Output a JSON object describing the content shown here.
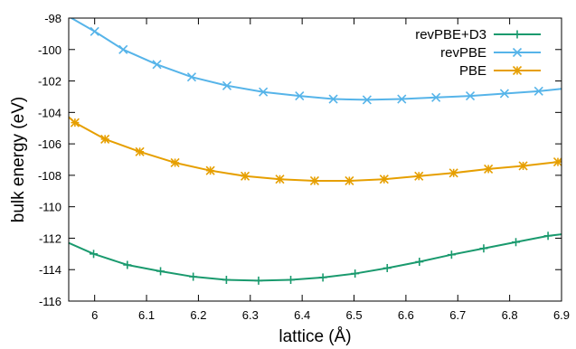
{
  "chart_data": {
    "type": "line",
    "title": "",
    "xlabel": "lattice (Å)",
    "ylabel": "bulk energy (eV)",
    "xlim": [
      5.95,
      6.9
    ],
    "ylim": [
      -116,
      -98
    ],
    "x_ticks": [
      "6",
      "6.1",
      "6.2",
      "6.3",
      "6.4",
      "6.5",
      "6.6",
      "6.7",
      "6.8",
      "6.9"
    ],
    "y_ticks": [
      "-98",
      "-100",
      "-102",
      "-104",
      "-106",
      "-108",
      "-110",
      "-112",
      "-114",
      "-116"
    ],
    "x_tick_values": [
      6.0,
      6.1,
      6.2,
      6.3,
      6.4,
      6.5,
      6.6,
      6.7,
      6.8,
      6.9
    ],
    "y_tick_values": [
      -98,
      -100,
      -102,
      -104,
      -106,
      -108,
      -110,
      -112,
      -114,
      -116
    ],
    "grid": false,
    "legend_position": "top-right",
    "series": [
      {
        "name": "revPBE+D3",
        "color": "#1a9a6e",
        "marker": "plus",
        "x": [
          5.95,
          5.998,
          6.063,
          6.127,
          6.19,
          6.254,
          6.316,
          6.378,
          6.44,
          6.502,
          6.564,
          6.626,
          6.688,
          6.75,
          6.812,
          6.874,
          6.9
        ],
        "y": [
          -112.3,
          -113.0,
          -113.7,
          -114.1,
          -114.45,
          -114.65,
          -114.7,
          -114.65,
          -114.5,
          -114.25,
          -113.9,
          -113.5,
          -113.05,
          -112.65,
          -112.25,
          -111.85,
          -111.75
        ]
      },
      {
        "name": "revPBE",
        "color": "#56b4e9",
        "marker": "cross",
        "x": [
          5.95,
          6.0,
          6.055,
          6.12,
          6.187,
          6.255,
          6.325,
          6.395,
          6.46,
          6.525,
          6.592,
          6.658,
          6.724,
          6.79,
          6.856,
          6.9
        ],
        "y": [
          -97.9,
          -98.85,
          -100.0,
          -100.95,
          -101.75,
          -102.3,
          -102.7,
          -102.95,
          -103.15,
          -103.2,
          -103.15,
          -103.05,
          -102.95,
          -102.8,
          -102.65,
          -102.5
        ]
      },
      {
        "name": "PBE",
        "color": "#e69f00",
        "marker": "star",
        "x": [
          5.95,
          5.962,
          6.02,
          6.087,
          6.155,
          6.223,
          6.29,
          6.357,
          6.424,
          6.491,
          6.558,
          6.625,
          6.692,
          6.759,
          6.826,
          6.893,
          6.9
        ],
        "y": [
          -104.3,
          -104.65,
          -105.7,
          -106.5,
          -107.2,
          -107.7,
          -108.05,
          -108.25,
          -108.35,
          -108.35,
          -108.25,
          -108.05,
          -107.85,
          -107.6,
          -107.4,
          -107.15,
          -107.1
        ]
      }
    ]
  }
}
